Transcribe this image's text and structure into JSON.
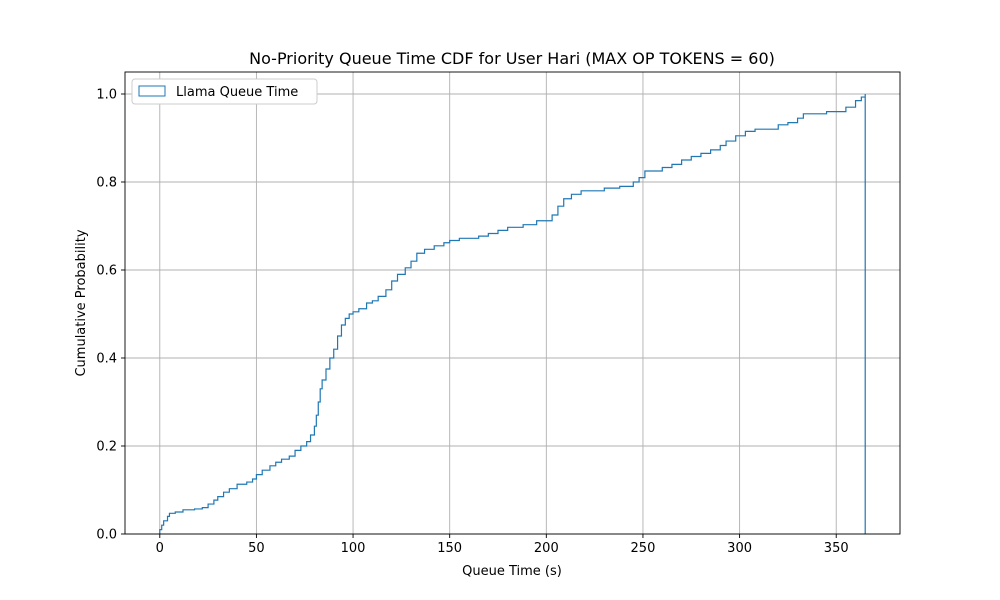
{
  "chart_data": {
    "type": "line",
    "title": "No-Priority Queue Time CDF for User Hari (MAX OP TOKENS = 60)",
    "xlabel": "Queue Time (s)",
    "ylabel": "Cumulative Probability",
    "xlim": [
      -18,
      383
    ],
    "ylim": [
      0,
      1.05
    ],
    "xticks": [
      0,
      50,
      100,
      150,
      200,
      250,
      300,
      350
    ],
    "yticks": [
      0.0,
      0.2,
      0.4,
      0.6,
      0.8,
      1.0
    ],
    "xtick_labels": [
      "0",
      "50",
      "100",
      "150",
      "200",
      "250",
      "300",
      "350"
    ],
    "ytick_labels": [
      "0.0",
      "0.2",
      "0.4",
      "0.6",
      "0.8",
      "1.0"
    ],
    "grid": true,
    "legend": {
      "position": "top-left",
      "entries": [
        "Llama  Queue Time"
      ]
    },
    "colors": {
      "series": "#1f77b4",
      "grid": "#b0b0b0"
    },
    "series": [
      {
        "name": "Llama  Queue Time",
        "step": true,
        "x_end": 365,
        "points": [
          [
            0,
            0.01
          ],
          [
            1,
            0.02
          ],
          [
            2,
            0.03
          ],
          [
            4,
            0.04
          ],
          [
            5,
            0.047
          ],
          [
            8,
            0.05
          ],
          [
            12,
            0.055
          ],
          [
            18,
            0.057
          ],
          [
            22,
            0.06
          ],
          [
            25,
            0.068
          ],
          [
            28,
            0.077
          ],
          [
            30,
            0.085
          ],
          [
            33,
            0.095
          ],
          [
            36,
            0.103
          ],
          [
            40,
            0.113
          ],
          [
            45,
            0.118
          ],
          [
            48,
            0.125
          ],
          [
            50,
            0.135
          ],
          [
            53,
            0.145
          ],
          [
            57,
            0.155
          ],
          [
            60,
            0.163
          ],
          [
            63,
            0.17
          ],
          [
            67,
            0.177
          ],
          [
            70,
            0.19
          ],
          [
            73,
            0.2
          ],
          [
            76,
            0.21
          ],
          [
            78,
            0.225
          ],
          [
            80,
            0.245
          ],
          [
            81,
            0.27
          ],
          [
            82,
            0.3
          ],
          [
            83,
            0.33
          ],
          [
            84,
            0.35
          ],
          [
            86,
            0.375
          ],
          [
            88,
            0.4
          ],
          [
            90,
            0.42
          ],
          [
            92,
            0.45
          ],
          [
            94,
            0.475
          ],
          [
            96,
            0.49
          ],
          [
            98,
            0.5
          ],
          [
            100,
            0.505
          ],
          [
            103,
            0.512
          ],
          [
            107,
            0.525
          ],
          [
            110,
            0.53
          ],
          [
            113,
            0.54
          ],
          [
            117,
            0.555
          ],
          [
            120,
            0.575
          ],
          [
            123,
            0.59
          ],
          [
            127,
            0.605
          ],
          [
            130,
            0.62
          ],
          [
            133,
            0.638
          ],
          [
            137,
            0.647
          ],
          [
            142,
            0.655
          ],
          [
            147,
            0.662
          ],
          [
            150,
            0.667
          ],
          [
            155,
            0.672
          ],
          [
            165,
            0.677
          ],
          [
            170,
            0.683
          ],
          [
            175,
            0.69
          ],
          [
            180,
            0.697
          ],
          [
            188,
            0.703
          ],
          [
            195,
            0.712
          ],
          [
            203,
            0.725
          ],
          [
            206,
            0.745
          ],
          [
            209,
            0.762
          ],
          [
            213,
            0.772
          ],
          [
            218,
            0.78
          ],
          [
            230,
            0.786
          ],
          [
            238,
            0.79
          ],
          [
            245,
            0.8
          ],
          [
            248,
            0.81
          ],
          [
            251,
            0.825
          ],
          [
            260,
            0.833
          ],
          [
            265,
            0.84
          ],
          [
            270,
            0.85
          ],
          [
            275,
            0.858
          ],
          [
            280,
            0.865
          ],
          [
            285,
            0.873
          ],
          [
            290,
            0.883
          ],
          [
            293,
            0.893
          ],
          [
            298,
            0.905
          ],
          [
            303,
            0.915
          ],
          [
            308,
            0.92
          ],
          [
            320,
            0.93
          ],
          [
            325,
            0.935
          ],
          [
            330,
            0.945
          ],
          [
            333,
            0.955
          ],
          [
            345,
            0.96
          ],
          [
            355,
            0.97
          ],
          [
            360,
            0.985
          ],
          [
            363,
            0.993
          ],
          [
            365,
            1.0
          ]
        ]
      }
    ]
  }
}
